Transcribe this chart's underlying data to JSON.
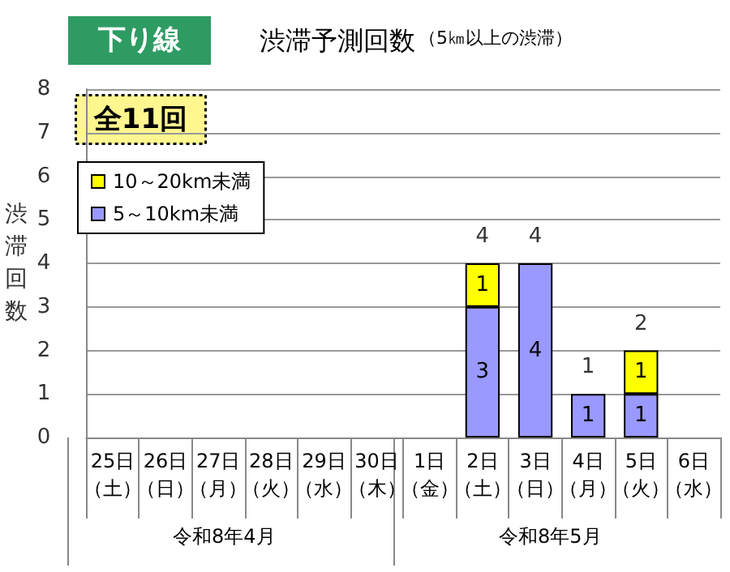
{
  "chart_data": {
    "type": "bar",
    "title": "渋滞予測回数",
    "subtitle": "（5㎞以上の渋滞）",
    "ylabel": "渋滞回数",
    "annotations": [
      "下り線",
      "全11回",
      "令和8年4月",
      "令和8年5月"
    ],
    "categories": [
      "25日（土）",
      "26日（日）",
      "27日（月）",
      "28日（火）",
      "29日（水）",
      "30日（木）",
      "1日（金）",
      "2日（土）",
      "3日（日）",
      "4日（月）",
      "5日（火）",
      "6日（水）"
    ],
    "series": [
      {
        "name": "5～10km未満",
        "color": "#9999ff",
        "values": [
          null,
          null,
          null,
          null,
          null,
          null,
          null,
          3,
          4,
          1,
          1,
          null
        ]
      },
      {
        "name": "10～20km未満",
        "color": "#ffff00",
        "values": [
          null,
          null,
          null,
          null,
          null,
          null,
          null,
          1,
          null,
          null,
          1,
          null
        ]
      }
    ],
    "stacked": true,
    "data_labels": true,
    "totals": [
      null,
      null,
      null,
      null,
      null,
      null,
      null,
      "4",
      "4",
      "1",
      "2",
      null
    ],
    "ylim": [
      0,
      8
    ],
    "yticks": [
      0,
      1,
      2,
      3,
      4,
      5,
      6,
      7,
      8
    ],
    "grid": "y",
    "legend": "top left"
  }
}
